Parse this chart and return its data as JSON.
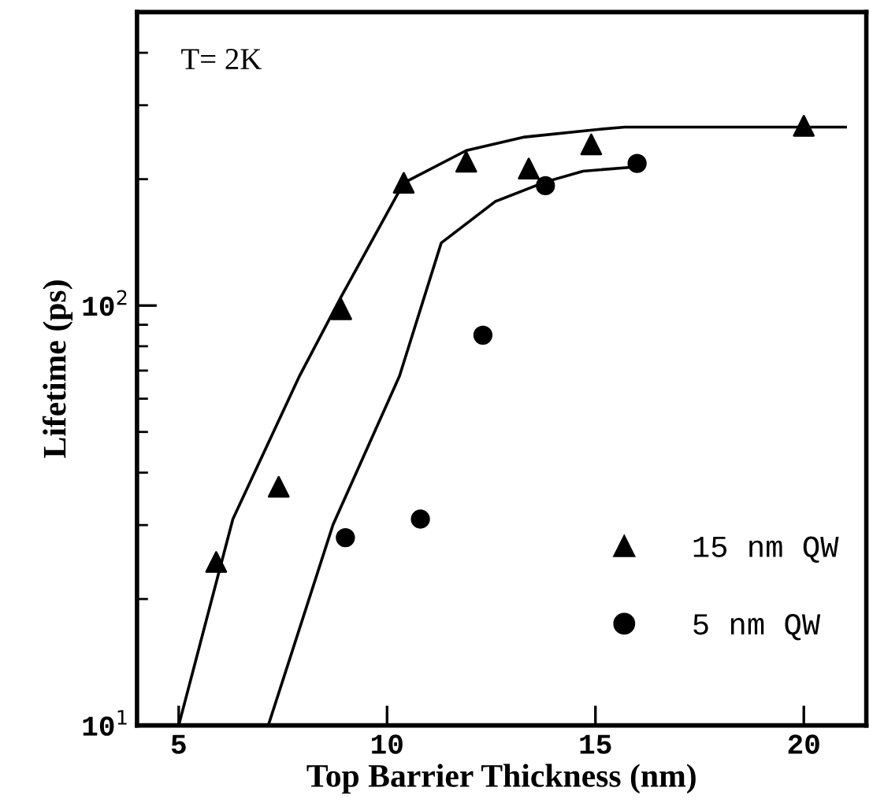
{
  "chart_data": {
    "type": "scatter",
    "xlabel": "Top Barrier Thickness (nm)",
    "ylabel": "Lifetime (ps)",
    "log": "y",
    "xlim": [
      4,
      21.5
    ],
    "xticks": [
      5,
      10,
      15,
      20
    ],
    "ylim": [
      10,
      500
    ],
    "yticks": [
      {
        "value": 10,
        "label": "10$^{1}$"
      },
      {
        "value": 100,
        "label": "10$^{2}$"
      }
    ],
    "legend": "bottom right",
    "grid": false,
    "annotations": [
      "T= 2K"
    ],
    "series": [
      {
        "name": "15 nm QW",
        "color": "#000000",
        "marker": "triangle",
        "x": [
          5.9,
          7.4,
          8.9,
          10.4,
          11.9,
          13.4,
          14.9,
          20.0
        ],
        "values": [
          24.5,
          37,
          98,
          196,
          220,
          212,
          242,
          268
        ]
      },
      {
        "name": "5 nm QW",
        "color": "#000000",
        "marker": "circle",
        "x": [
          9.0,
          10.8,
          12.3,
          13.8,
          16.0
        ],
        "values": [
          28,
          31,
          85,
          193,
          218
        ]
      },
      {
        "type": "line",
        "color": "#000000",
        "marker": "none",
        "x": [
          5.0,
          6.3,
          7.9,
          8.9,
          10.4,
          11.9,
          13.3,
          15.1,
          15.7,
          21.0
        ],
        "values": [
          10,
          31,
          68,
          105,
          196,
          234,
          252,
          263,
          266,
          266
        ]
      },
      {
        "type": "line",
        "color": "#000000",
        "marker": "none",
        "x": [
          7.15,
          8.7,
          10.3,
          11.3,
          12.6,
          13.8,
          14.7,
          16.0
        ],
        "values": [
          10,
          30,
          68,
          141,
          177,
          197,
          209,
          214
        ]
      }
    ]
  }
}
